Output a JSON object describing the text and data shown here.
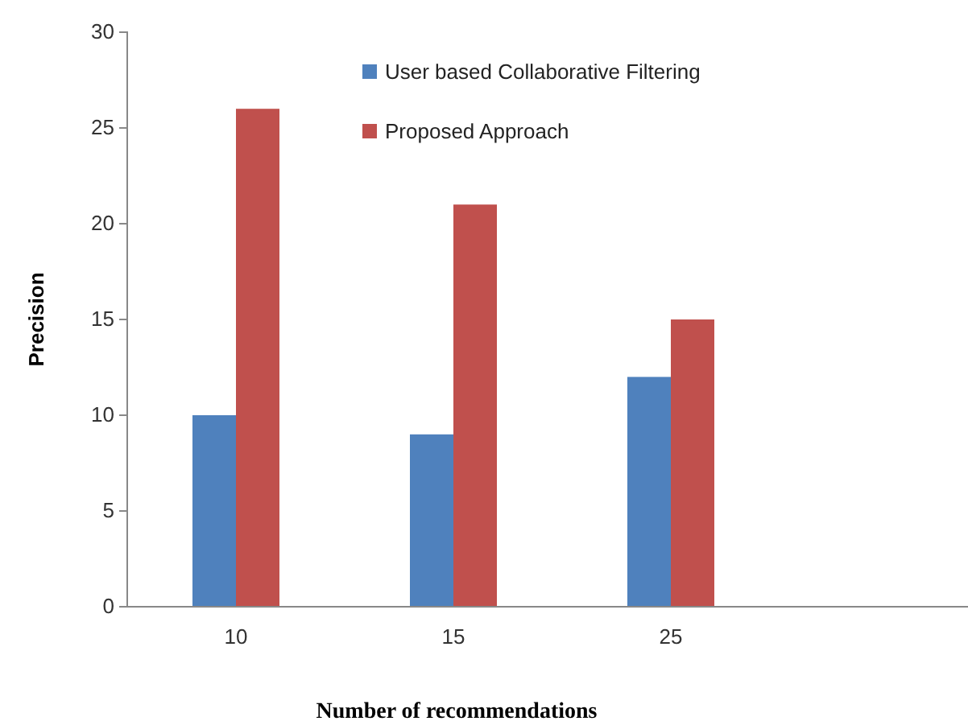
{
  "chart_data": {
    "type": "bar",
    "xlabel": "Number of recommendations",
    "ylabel": "Precision",
    "categories": [
      "10",
      "15",
      "25",
      null
    ],
    "series": [
      {
        "name": "User based Collaborative Filtering",
        "color": "#4f81bd",
        "values": [
          10,
          9,
          12,
          null
        ]
      },
      {
        "name": "Proposed Approach",
        "color": "#c0504d",
        "values": [
          26,
          21,
          15,
          null
        ]
      }
    ],
    "ylim": [
      0,
      30
    ],
    "yticks": [
      0,
      5,
      10,
      15,
      20,
      25,
      30
    ],
    "grid": false,
    "legend": "top"
  }
}
